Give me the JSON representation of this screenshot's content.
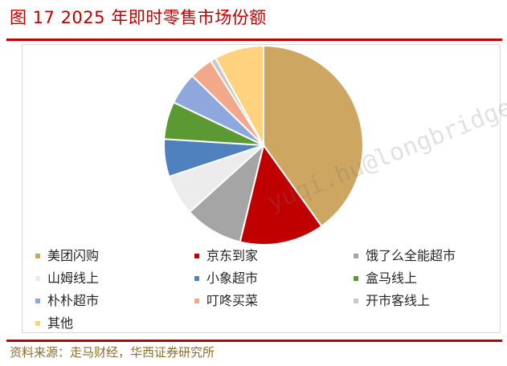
{
  "header": {
    "figure_title": "图 17 2025 年即时零售市场份额"
  },
  "footer": {
    "source": "资料来源：走马财经，华西证券研究所"
  },
  "watermark": "yuqi.hu@longbridge",
  "chart_data": {
    "type": "pie",
    "title": "",
    "legend_position": "bottom",
    "slices": [
      {
        "label": "美团闪购",
        "value": 40.1,
        "color": "#cda661"
      },
      {
        "label": "京东到家",
        "value": 13.7,
        "color": "#c00000"
      },
      {
        "label": "饿了么全能超市",
        "value": 9.5,
        "color": "#a5a5a5"
      },
      {
        "label": "山姆线上",
        "value": 6.6,
        "color": "#ececec"
      },
      {
        "label": "小象超市",
        "value": 6.1,
        "color": "#4e81bd"
      },
      {
        "label": "盒马线上",
        "value": 6.1,
        "color": "#5b9a32"
      },
      {
        "label": "朴朴超市",
        "value": 5.2,
        "color": "#8ea7dc"
      },
      {
        "label": "叮咚买菜",
        "value": 3.8,
        "color": "#f2a889"
      },
      {
        "label": "开市客线上",
        "value": 0.9,
        "color": "#c9c9c9"
      },
      {
        "label": "其他",
        "value": 8.0,
        "color": "#ffd27f"
      }
    ]
  }
}
